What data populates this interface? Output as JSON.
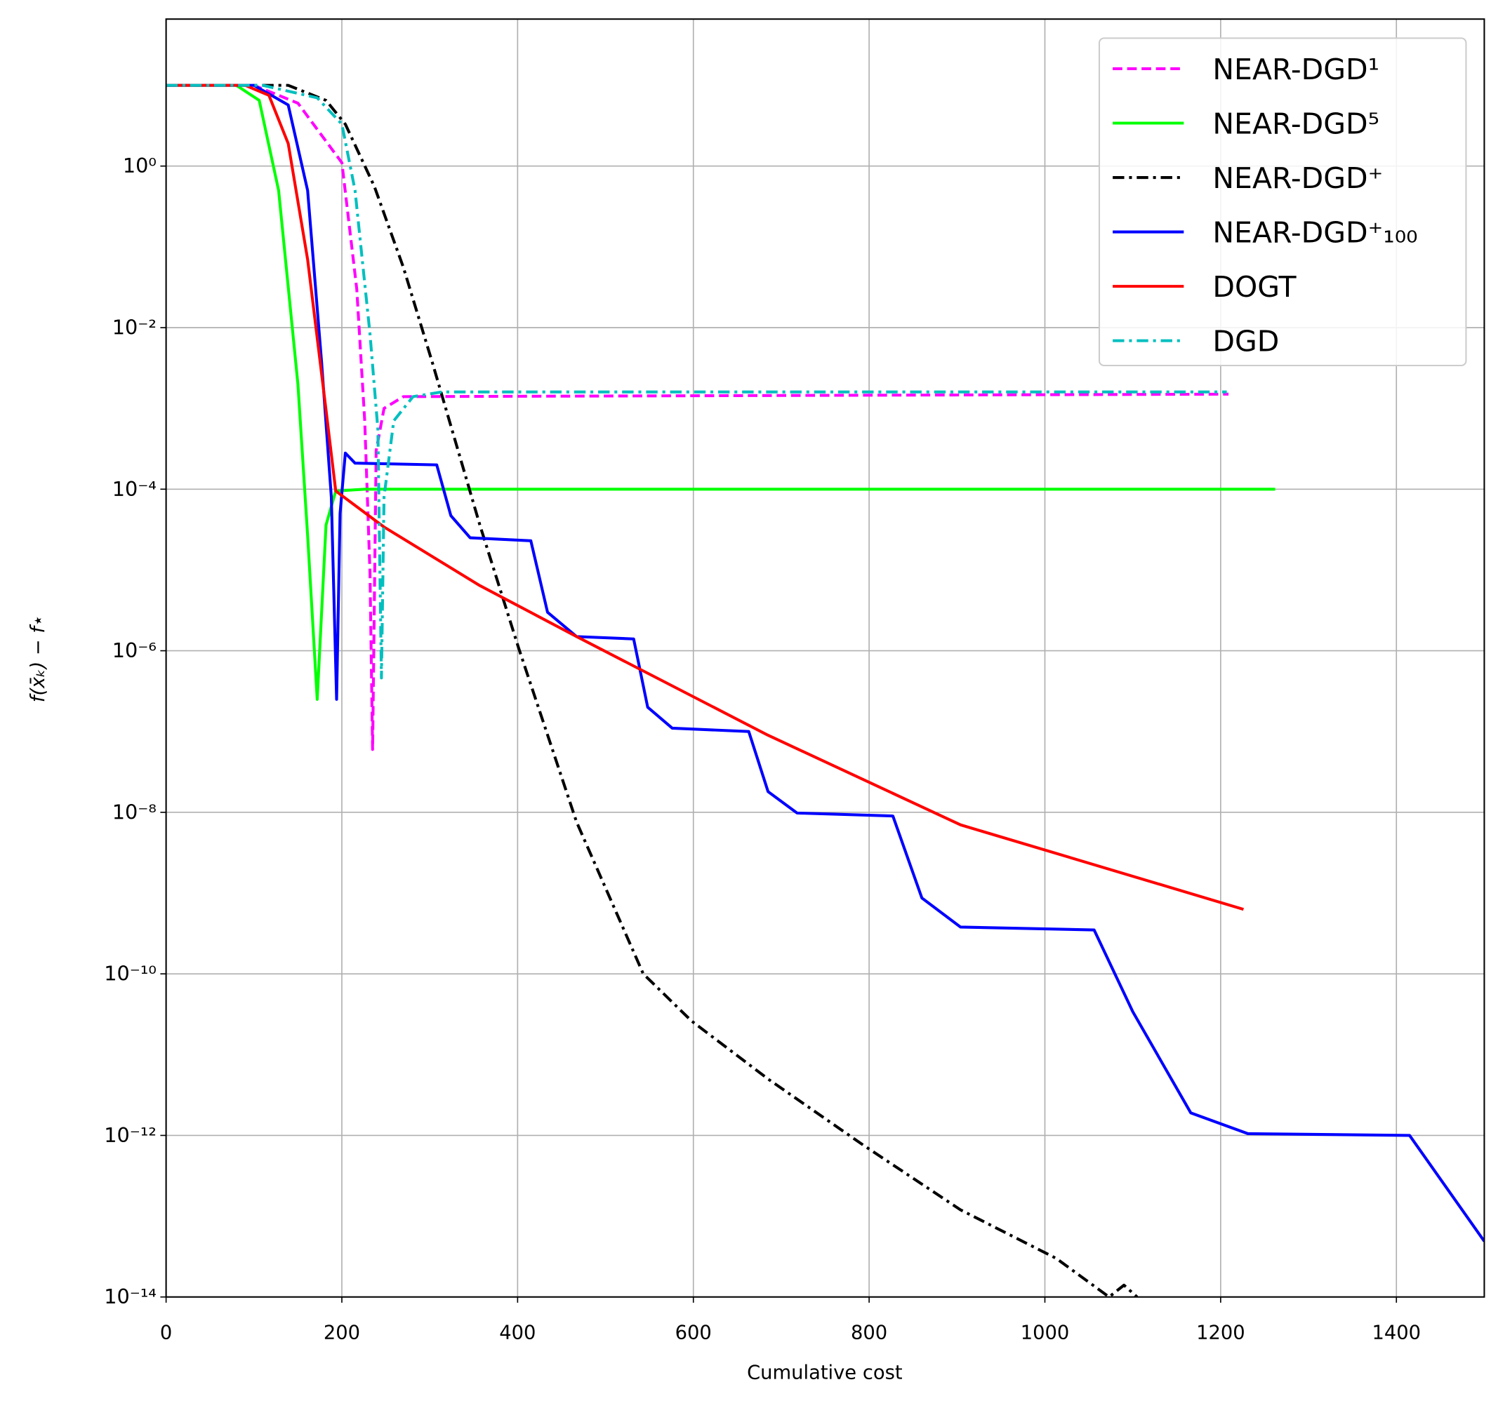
{
  "chart_data": {
    "type": "line",
    "xlabel": "Cumulative cost",
    "ylabel": "f(x̄ₖ) − f⋆",
    "xlim": [
      0,
      1500
    ],
    "xticks": [
      0,
      200,
      400,
      600,
      800,
      1000,
      1200,
      1400
    ],
    "ylim": [
      1e-14,
      66
    ],
    "yscale": "log",
    "yticks": [
      {
        "value": 1,
        "label": "10⁰"
      },
      {
        "value": 0.01,
        "label": "10⁻²"
      },
      {
        "value": 0.0001,
        "label": "10⁻⁴"
      },
      {
        "value": 1e-06,
        "label": "10⁻⁶"
      },
      {
        "value": 1e-08,
        "label": "10⁻⁸"
      },
      {
        "value": 1e-10,
        "label": "10⁻¹⁰"
      },
      {
        "value": 1e-12,
        "label": "10⁻¹²"
      },
      {
        "value": 1e-14,
        "label": "10⁻¹⁴"
      }
    ],
    "grid": true,
    "legend": "upper right",
    "series": [
      {
        "name": "NEAR-DGD¹",
        "color": "#ff00ff",
        "style": "dashed",
        "x": [
          0,
          100,
          150,
          200,
          217,
          226,
          232,
          235,
          239,
          248,
          270,
          1209
        ],
        "values": [
          10,
          10,
          6,
          1.1,
          0.03,
          0.0007,
          9e-06,
          6e-08,
          0.0003,
          0.001,
          0.0014,
          0.0015
        ]
      },
      {
        "name": "NEAR-DGD⁵",
        "color": "#00ff00",
        "style": "solid",
        "x": [
          0,
          80,
          106,
          128,
          150,
          161,
          172,
          182,
          193,
          226,
          1262
        ],
        "values": [
          10,
          10,
          6.5,
          0.5,
          0.002,
          2.7e-05,
          2.5e-07,
          3.6e-05,
          9.5e-05,
          0.0001,
          0.0001
        ]
      },
      {
        "name": "NEAR-DGD⁺",
        "color": "#000000",
        "style": "dashdot",
        "x": [
          0,
          139,
          182,
          204,
          237,
          270,
          303,
          357,
          401,
          467,
          543,
          598,
          685,
          794,
          904,
          1013,
          1073,
          1090,
          1105
        ],
        "values": [
          10,
          10,
          6.5,
          3.3,
          0.56,
          0.056,
          0.0037,
          3.6e-05,
          1.1e-06,
          7.6e-09,
          1e-10,
          2.6e-11,
          5e-12,
          7.5e-13,
          1.2e-13,
          3e-14,
          1e-14,
          1.4e-14,
          1e-14
        ]
      },
      {
        "name": "NEAR-DGD⁺₁₀₀",
        "color": "#0000ff",
        "style": "solid",
        "x": [
          0,
          100,
          139,
          161,
          177,
          188,
          194,
          198,
          204,
          215,
          308,
          324,
          346,
          415,
          434,
          467,
          532,
          548,
          576,
          663,
          685,
          718,
          827,
          860,
          904,
          1056,
          1100,
          1166,
          1231,
          1415,
          1500
        ],
        "values": [
          10,
          10,
          5.7,
          0.5,
          0.0037,
          8e-05,
          2.5e-07,
          5e-05,
          0.00028,
          0.00021,
          0.0002,
          4.7e-05,
          2.5e-05,
          2.3e-05,
          3e-06,
          1.5e-06,
          1.4e-06,
          2e-07,
          1.1e-07,
          1e-07,
          1.8e-08,
          9.8e-09,
          9e-09,
          8.7e-10,
          3.8e-10,
          3.5e-10,
          3.4e-11,
          1.9e-12,
          1.05e-12,
          1e-12,
          4.9e-14
        ]
      },
      {
        "name": "DOGT",
        "color": "#ff0000",
        "style": "solid",
        "x": [
          0,
          90,
          117,
          139,
          161,
          182,
          193,
          248,
          357,
          467,
          685,
          904,
          1226
        ],
        "values": [
          10,
          10,
          7.5,
          1.9,
          0.07,
          0.00095,
          9.5e-05,
          3.4e-05,
          6.4e-06,
          1.5e-06,
          9e-08,
          7e-09,
          6.3e-10
        ]
      },
      {
        "name": "DGD",
        "color": "#00bfbf",
        "style": "dashdot",
        "x": [
          0,
          110,
          172,
          200,
          215,
          232,
          241,
          245,
          248,
          259,
          281,
          314,
          1207
        ],
        "values": [
          10,
          10,
          7,
          3.3,
          0.5,
          0.0083,
          0.00055,
          4.6e-07,
          8e-05,
          0.0007,
          0.0014,
          0.0016,
          0.0016
        ]
      }
    ]
  }
}
